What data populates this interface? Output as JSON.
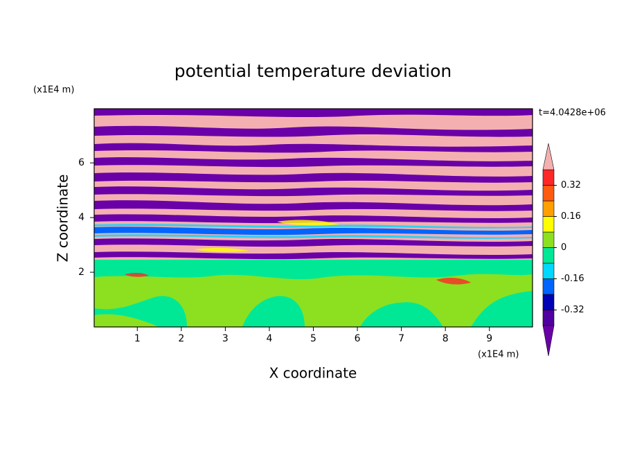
{
  "chart_data": {
    "type": "contour",
    "title": "potential temperature deviation",
    "xlabel": "X coordinate",
    "ylabel": "Z coordinate",
    "x_unit": "(x1E4 m)",
    "y_unit": "(x1E4 m)",
    "annotation": "t=4.0428e+06",
    "xlim": [
      0.02,
      9.98
    ],
    "ylim": [
      0,
      7.98
    ],
    "xticks": [
      1,
      2,
      3,
      4,
      5,
      6,
      7,
      8,
      9
    ],
    "yticks": [
      2,
      4,
      6
    ],
    "colorbar_levels": [
      -0.4,
      -0.32,
      -0.24,
      -0.16,
      -0.08,
      0,
      0.08,
      0.16,
      0.24,
      0.32,
      0.4
    ],
    "colorbar_colors": [
      "#5000a0",
      "#0000b4",
      "#0064ff",
      "#00d8ff",
      "#00e896",
      "#8ce020",
      "#ffff00",
      "#ff9f00",
      "#ff5a10",
      "#ff2828"
    ],
    "colorbar_under": "#6a00a8",
    "colorbar_over": "#f4b0b0",
    "colorbar_ticks": [
      -0.32,
      -0.16,
      0,
      0.16,
      0.32
    ]
  }
}
